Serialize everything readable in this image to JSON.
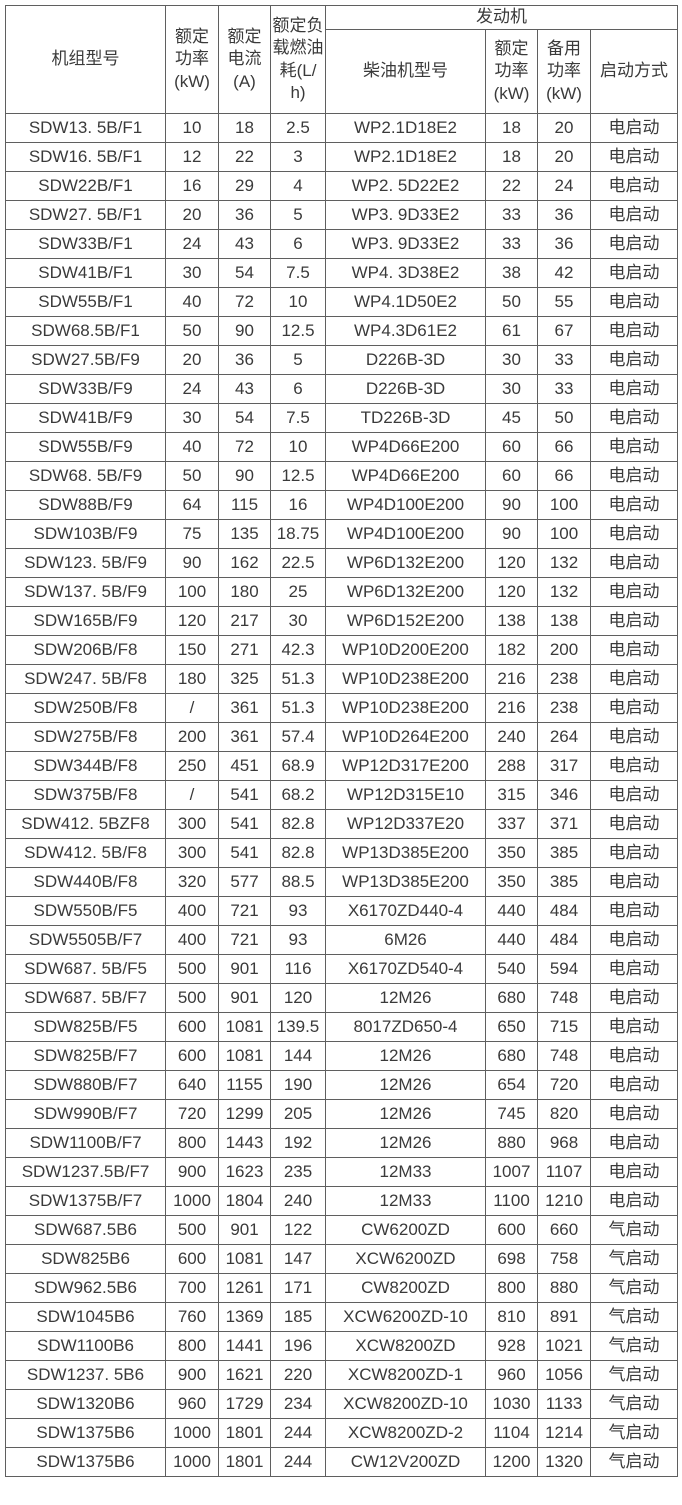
{
  "colors": {
    "border": "#5f5f5f",
    "text": "#3a3a3a",
    "background": "#ffffff"
  },
  "table": {
    "header": {
      "unit_model": "机组型号",
      "rated_power": "额定\n功率\n(kW)",
      "rated_current": "额定\n电流\n(A)",
      "fuel_consumption": "额定负\n载燃油\n耗(L/\nh)",
      "engine_group": "发动机",
      "engine_model": "柴油机型号",
      "engine_rated_power": "额定\n功率\n(kW)",
      "engine_standby_power": "备用\n功率\n(kW)",
      "start_mode": "启动方式"
    },
    "column_keys": [
      "unit-model",
      "rated-power-kw",
      "rated-current-a",
      "fuel-consumption-lh",
      "engine-model",
      "engine-rated-power-kw",
      "engine-standby-power-kw",
      "start-mode"
    ],
    "rows": [
      [
        "SDW13. 5B/F1",
        "10",
        "18",
        "2.5",
        "WP2.1D18E2",
        "18",
        "20",
        "电启动"
      ],
      [
        "SDW16. 5B/F1",
        "12",
        "22",
        "3",
        "WP2.1D18E2",
        "18",
        "20",
        "电启动"
      ],
      [
        "SDW22B/F1",
        "16",
        "29",
        "4",
        "WP2. 5D22E2",
        "22",
        "24",
        "电启动"
      ],
      [
        "SDW27. 5B/F1",
        "20",
        "36",
        "5",
        "WP3. 9D33E2",
        "33",
        "36",
        "电启动"
      ],
      [
        "SDW33B/F1",
        "24",
        "43",
        "6",
        "WP3. 9D33E2",
        "33",
        "36",
        "电启动"
      ],
      [
        "SDW41B/F1",
        "30",
        "54",
        "7.5",
        "WP4. 3D38E2",
        "38",
        "42",
        "电启动"
      ],
      [
        "SDW55B/F1",
        "40",
        "72",
        "10",
        "WP4.1D50E2",
        "50",
        "55",
        "电启动"
      ],
      [
        "SDW68.5B/F1",
        "50",
        "90",
        "12.5",
        "WP4.3D61E2",
        "61",
        "67",
        "电启动"
      ],
      [
        "SDW27.5B/F9",
        "20",
        "36",
        "5",
        "D226B-3D",
        "30",
        "33",
        "电启动"
      ],
      [
        "SDW33B/F9",
        "24",
        "43",
        "6",
        "D226B-3D",
        "30",
        "33",
        "电启动"
      ],
      [
        "SDW41B/F9",
        "30",
        "54",
        "7.5",
        "TD226B-3D",
        "45",
        "50",
        "电启动"
      ],
      [
        "SDW55B/F9",
        "40",
        "72",
        "10",
        "WP4D66E200",
        "60",
        "66",
        "电启动"
      ],
      [
        "SDW68. 5B/F9",
        "50",
        "90",
        "12.5",
        "WP4D66E200",
        "60",
        "66",
        "电启动"
      ],
      [
        "SDW88B/F9",
        "64",
        "115",
        "16",
        "WP4D100E200",
        "90",
        "100",
        "电启动"
      ],
      [
        "SDW103B/F9",
        "75",
        "135",
        "18.75",
        "WP4D100E200",
        "90",
        "100",
        "电启动"
      ],
      [
        "SDW123. 5B/F9",
        "90",
        "162",
        "22.5",
        "WP6D132E200",
        "120",
        "132",
        "电启动"
      ],
      [
        "SDW137. 5B/F9",
        "100",
        "180",
        "25",
        "WP6D132E200",
        "120",
        "132",
        "电启动"
      ],
      [
        "SDW165B/F9",
        "120",
        "217",
        "30",
        "WP6D152E200",
        "138",
        "138",
        "电启动"
      ],
      [
        "SDW206B/F8",
        "150",
        "271",
        "42.3",
        "WP10D200E200",
        "182",
        "200",
        "电启动"
      ],
      [
        "SDW247. 5B/F8",
        "180",
        "325",
        "51.3",
        "WP10D238E200",
        "216",
        "238",
        "电启动"
      ],
      [
        "SDW250B/F8",
        "/",
        "361",
        "51.3",
        "WP10D238E200",
        "216",
        "238",
        "电启动"
      ],
      [
        "SDW275B/F8",
        "200",
        "361",
        "57.4",
        "WP10D264E200",
        "240",
        "264",
        "电启动"
      ],
      [
        "SDW344B/F8",
        "250",
        "451",
        "68.9",
        "WP12D317E200",
        "288",
        "317",
        "电启动"
      ],
      [
        "SDW375B/F8",
        "/",
        "541",
        "68.2",
        "WP12D315E10",
        "315",
        "346",
        "电启动"
      ],
      [
        "SDW412. 5BZF8",
        "300",
        "541",
        "82.8",
        "WP12D337E20",
        "337",
        "371",
        "电启动"
      ],
      [
        "SDW412. 5B/F8",
        "300",
        "541",
        "82.8",
        "WP13D385E200",
        "350",
        "385",
        "电启动"
      ],
      [
        "SDW440B/F8",
        "320",
        "577",
        "88.5",
        "WP13D385E200",
        "350",
        "385",
        "电启动"
      ],
      [
        "SDW550B/F5",
        "400",
        "721",
        "93",
        "X6170ZD440-4",
        "440",
        "484",
        "电启动"
      ],
      [
        "SDW5505B/F7",
        "400",
        "721",
        "93",
        "6M26",
        "440",
        "484",
        "电启动"
      ],
      [
        "SDW687. 5B/F5",
        "500",
        "901",
        "116",
        "X6170ZD540-4",
        "540",
        "594",
        "电启动"
      ],
      [
        "SDW687. 5B/F7",
        "500",
        "901",
        "120",
        "12M26",
        "680",
        "748",
        "电启动"
      ],
      [
        "SDW825B/F5",
        "600",
        "1081",
        "139.5",
        "8017ZD650-4",
        "650",
        "715",
        "电启动"
      ],
      [
        "SDW825B/F7",
        "600",
        "1081",
        "144",
        "12M26",
        "680",
        "748",
        "电启动"
      ],
      [
        "SDW880B/F7",
        "640",
        "1155",
        "190",
        "12M26",
        "654",
        "720",
        "电启动"
      ],
      [
        "SDW990B/F7",
        "720",
        "1299",
        "205",
        "12M26",
        "745",
        "820",
        "电启动"
      ],
      [
        "SDW1100B/F7",
        "800",
        "1443",
        "192",
        "12M26",
        "880",
        "968",
        "电启动"
      ],
      [
        "SDW1237.5B/F7",
        "900",
        "1623",
        "235",
        "12M33",
        "1007",
        "1107",
        "电启动"
      ],
      [
        "SDW1375B/F7",
        "1000",
        "1804",
        "240",
        "12M33",
        "1100",
        "1210",
        "电启动"
      ],
      [
        "SDW687.5B6",
        "500",
        "901",
        "122",
        "CW6200ZD",
        "600",
        "660",
        "气启动"
      ],
      [
        "SDW825B6",
        "600",
        "1081",
        "147",
        "XCW6200ZD",
        "698",
        "758",
        "气启动"
      ],
      [
        "SDW962.5B6",
        "700",
        "1261",
        "171",
        "CW8200ZD",
        "800",
        "880",
        "气启动"
      ],
      [
        "SDW1045B6",
        "760",
        "1369",
        "185",
        "XCW6200ZD-10",
        "810",
        "891",
        "气启动"
      ],
      [
        "SDW1100B6",
        "800",
        "1441",
        "196",
        "XCW8200ZD",
        "928",
        "1021",
        "气启动"
      ],
      [
        "SDW1237. 5B6",
        "900",
        "1621",
        "220",
        "XCW8200ZD-1",
        "960",
        "1056",
        "气启动"
      ],
      [
        "SDW1320B6",
        "960",
        "1729",
        "234",
        "XCW8200ZD-10",
        "1030",
        "1133",
        "气启动"
      ],
      [
        "SDW1375B6",
        "1000",
        "1801",
        "244",
        "XCW8200ZD-2",
        "1104",
        "1214",
        "气启动"
      ],
      [
        "SDW1375B6",
        "1000",
        "1801",
        "244",
        "CW12V200ZD",
        "1200",
        "1320",
        "气启动"
      ]
    ]
  }
}
